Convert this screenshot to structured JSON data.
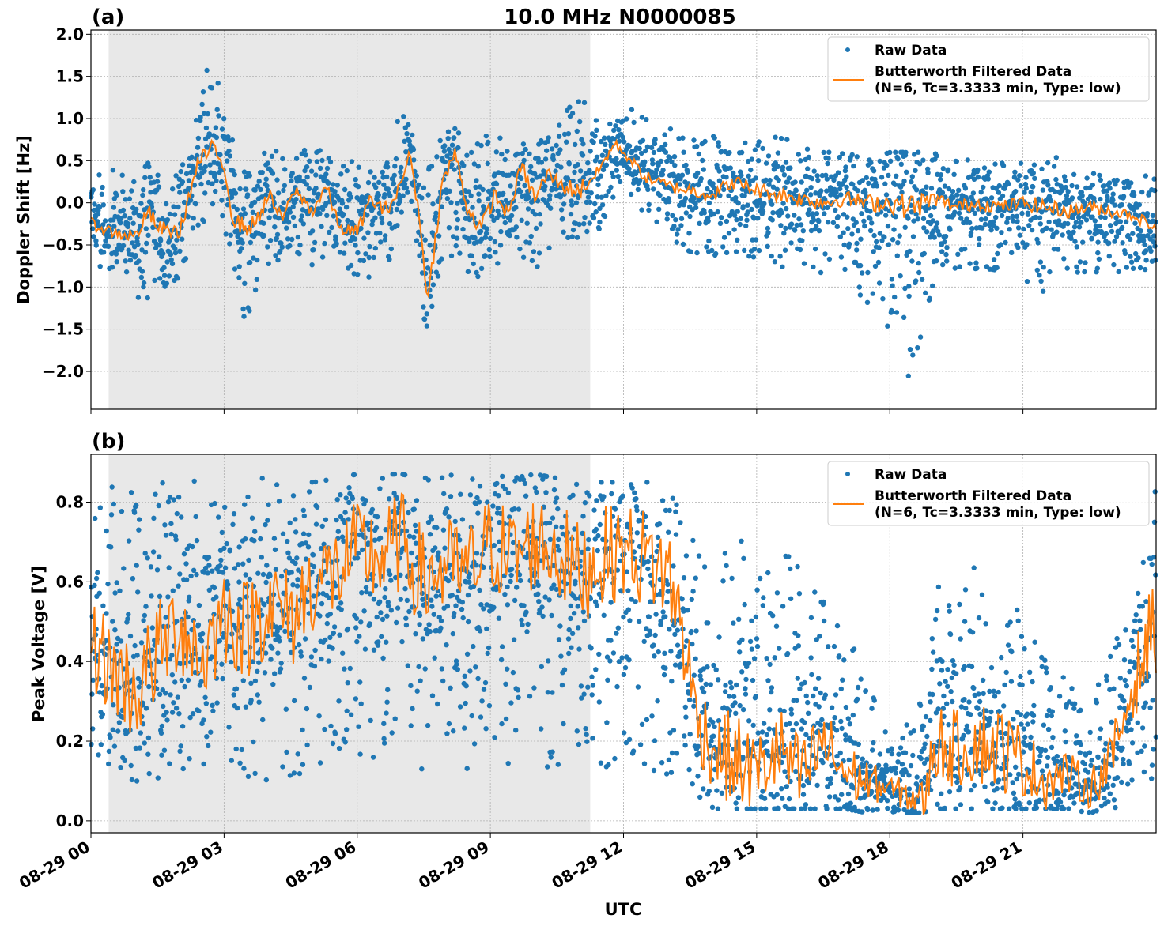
{
  "figure": {
    "title": "10.0 MHz N0000085",
    "xlabel": "UTC",
    "x_tick_labels": [
      "08-29 00",
      "08-29 03",
      "08-29 06",
      "08-29 09",
      "08-29 12",
      "08-29 15",
      "08-29 18",
      "08-29 21"
    ],
    "shaded_interval_utc": [
      "08-29 00:24",
      "08-29 11:15"
    ],
    "legend": {
      "raw": "Raw Data",
      "filtered_line1": "Butterworth Filtered Data",
      "filtered_line2": "(N=6, Tc=3.3333 min, Type: low)"
    },
    "colors": {
      "raw": "#1f77b4",
      "filtered": "#ff7f0e",
      "shade": "#e8e8e8",
      "grid": "#b0b0b0"
    }
  },
  "chart_data": [
    {
      "panel": "(a)",
      "type": "scatter",
      "ylabel": "Doppler Shift [Hz]",
      "xlim_hours": [
        0,
        24
      ],
      "ylim": [
        -2.45,
        2.05
      ],
      "y_ticks": [
        2.0,
        1.5,
        1.0,
        0.5,
        0.0,
        -0.5,
        -1.0,
        -1.5,
        -2.0
      ],
      "y_tick_labels": [
        "2.0",
        "1.5",
        "1.0",
        "0.5",
        "0.0",
        "−0.5",
        "−1.0",
        "−1.5",
        "−2.0"
      ],
      "legend_position": "upper right",
      "grid": true,
      "series": [
        {
          "name": "Butterworth Filtered Data",
          "x_hours": [
            0,
            0.5,
            1,
            1.3,
            1.5,
            2,
            2.4,
            2.7,
            3,
            3.2,
            3.5,
            3.7,
            4,
            4.3,
            4.6,
            5,
            5.3,
            5.6,
            6,
            6.3,
            6.6,
            6.9,
            7.2,
            7.4,
            7.6,
            7.9,
            8.2,
            8.5,
            8.8,
            9.1,
            9.4,
            9.7,
            10,
            10.3,
            10.6,
            11,
            11.4,
            11.8,
            12,
            12.5,
            13,
            13.5,
            14,
            14.5,
            15,
            15.5,
            16,
            16.5,
            17,
            17.5,
            18,
            18.5,
            19,
            19.5,
            20,
            20.5,
            21,
            21.5,
            22,
            22.5,
            23,
            23.5,
            24
          ],
          "y": [
            -0.25,
            -0.35,
            -0.4,
            -0.1,
            -0.3,
            -0.35,
            0.45,
            0.65,
            0.45,
            -0.2,
            -0.3,
            -0.25,
            0.1,
            -0.2,
            0.15,
            -0.1,
            0.2,
            -0.3,
            -0.35,
            0.05,
            -0.1,
            0.1,
            0.6,
            -0.2,
            -1.15,
            0.2,
            0.6,
            -0.1,
            -0.3,
            0.1,
            -0.15,
            0.45,
            0.05,
            0.35,
            0.2,
            0.15,
            0.35,
            0.7,
            0.6,
            0.3,
            0.2,
            0.15,
            0.1,
            0.25,
            0.15,
            0.1,
            0.05,
            0.0,
            0.05,
            0.0,
            0.0,
            -0.05,
            0.05,
            -0.05,
            0.0,
            -0.05,
            0.0,
            -0.05,
            -0.1,
            -0.05,
            -0.1,
            -0.15,
            -0.3
          ]
        },
        {
          "name": "Raw Data",
          "x_hours": [
            0,
            0.5,
            1,
            1.5,
            2,
            2.5,
            2.7,
            3,
            3.5,
            4,
            4.5,
            5,
            5.5,
            6,
            6.5,
            7,
            7.2,
            7.5,
            8,
            8.5,
            9,
            9.5,
            10,
            10.5,
            11,
            11.5,
            12,
            12.5,
            13,
            13.5,
            14,
            14.5,
            15,
            15.5,
            16,
            16.5,
            17,
            17.5,
            18,
            18.5,
            19,
            19.5,
            20,
            20.5,
            21,
            21.5,
            22,
            22.5,
            23,
            23.5,
            24
          ],
          "y_min": [
            -0.9,
            -0.8,
            -1.2,
            -1.1,
            -0.9,
            -0.3,
            0.0,
            -0.3,
            -1.5,
            -0.8,
            -0.6,
            -0.8,
            -0.7,
            -0.9,
            -0.9,
            -0.4,
            -0.1,
            -1.6,
            -0.6,
            -1.0,
            -0.8,
            -0.6,
            -0.8,
            -0.5,
            -0.5,
            -0.3,
            0.3,
            -0.3,
            -0.4,
            -0.6,
            -0.7,
            -0.6,
            -0.7,
            -0.8,
            -0.8,
            -0.9,
            -0.9,
            -1.2,
            -1.5,
            -2.2,
            -0.9,
            -0.8,
            -0.8,
            -0.8,
            -0.9,
            -1.1,
            -0.9,
            -0.8,
            -0.9,
            -0.8,
            -0.8
          ],
          "y_max": [
            0.3,
            0.4,
            0.3,
            0.6,
            0.4,
            1.4,
            1.8,
            1.2,
            0.4,
            0.7,
            0.5,
            0.7,
            0.5,
            0.5,
            0.6,
            1.1,
            1.0,
            0.3,
            1.0,
            0.7,
            0.9,
            0.6,
            0.8,
            0.9,
            1.6,
            0.8,
            1.2,
            1.0,
            0.9,
            0.8,
            0.8,
            0.8,
            0.8,
            0.8,
            0.7,
            0.6,
            0.6,
            0.5,
            0.6,
            0.6,
            0.6,
            0.5,
            0.6,
            0.5,
            0.5,
            0.6,
            0.5,
            0.5,
            0.4,
            0.4,
            0.3
          ]
        }
      ]
    },
    {
      "panel": "(b)",
      "type": "scatter",
      "ylabel": "Peak Voltage [V]",
      "xlim_hours": [
        0,
        24
      ],
      "ylim": [
        -0.03,
        0.92
      ],
      "y_ticks": [
        0.0,
        0.2,
        0.4,
        0.6,
        0.8
      ],
      "y_tick_labels": [
        "0.0",
        "0.2",
        "0.4",
        "0.6",
        "0.8"
      ],
      "legend_position": "upper right",
      "grid": true,
      "series": [
        {
          "name": "Butterworth Filtered Data",
          "x_hours": [
            0,
            0.5,
            1,
            1.5,
            2,
            2.5,
            3,
            3.5,
            4,
            4.5,
            5,
            5.5,
            6,
            6.5,
            7,
            7.5,
            8,
            8.5,
            9,
            9.5,
            10,
            10.5,
            11,
            11.5,
            12,
            12.5,
            13,
            13.3,
            13.6,
            14,
            14.5,
            15,
            15.5,
            16,
            16.5,
            17,
            17.5,
            18,
            18.5,
            18.8,
            19,
            19.5,
            20,
            20.5,
            21,
            21.5,
            22,
            22.5,
            23,
            23.5,
            24
          ],
          "y": [
            0.45,
            0.38,
            0.32,
            0.42,
            0.5,
            0.4,
            0.52,
            0.48,
            0.55,
            0.5,
            0.6,
            0.62,
            0.68,
            0.66,
            0.7,
            0.6,
            0.64,
            0.62,
            0.7,
            0.66,
            0.7,
            0.68,
            0.62,
            0.66,
            0.68,
            0.66,
            0.62,
            0.5,
            0.28,
            0.18,
            0.15,
            0.12,
            0.18,
            0.1,
            0.2,
            0.12,
            0.1,
            0.08,
            0.06,
            0.05,
            0.2,
            0.18,
            0.2,
            0.18,
            0.15,
            0.1,
            0.12,
            0.08,
            0.15,
            0.35,
            0.5
          ]
        },
        {
          "name": "Raw Data",
          "x_hours": [
            0,
            0.5,
            1,
            1.5,
            2,
            2.5,
            3,
            3.5,
            4,
            4.5,
            5,
            5.5,
            6,
            6.5,
            7,
            7.5,
            8,
            8.5,
            9,
            9.5,
            10,
            10.5,
            11,
            11.5,
            12,
            12.5,
            13,
            13.3,
            13.6,
            14,
            14.5,
            15,
            15.5,
            16,
            16.5,
            17,
            17.5,
            18,
            18.5,
            18.8,
            19,
            19.5,
            20,
            20.5,
            21,
            21.5,
            22,
            22.5,
            23,
            23.5,
            24
          ],
          "y_min": [
            0.15,
            0.12,
            0.1,
            0.1,
            0.12,
            0.1,
            0.12,
            0.1,
            0.1,
            0.1,
            0.12,
            0.15,
            0.15,
            0.12,
            0.12,
            0.1,
            0.15,
            0.12,
            0.15,
            0.12,
            0.15,
            0.12,
            0.1,
            0.12,
            0.15,
            0.12,
            0.1,
            0.1,
            0.05,
            0.03,
            0.03,
            0.03,
            0.03,
            0.03,
            0.03,
            0.03,
            0.02,
            0.02,
            0.02,
            0.02,
            0.03,
            0.03,
            0.03,
            0.03,
            0.03,
            0.03,
            0.03,
            0.02,
            0.03,
            0.05,
            0.1
          ],
          "y_max": [
            0.85,
            0.84,
            0.84,
            0.86,
            0.86,
            0.86,
            0.85,
            0.86,
            0.86,
            0.86,
            0.86,
            0.86,
            0.87,
            0.87,
            0.87,
            0.86,
            0.87,
            0.86,
            0.87,
            0.86,
            0.87,
            0.86,
            0.86,
            0.85,
            0.85,
            0.85,
            0.85,
            0.82,
            0.7,
            0.6,
            0.75,
            0.6,
            0.7,
            0.65,
            0.55,
            0.5,
            0.35,
            0.2,
            0.3,
            0.3,
            0.6,
            0.6,
            0.65,
            0.68,
            0.55,
            0.45,
            0.35,
            0.3,
            0.45,
            0.6,
            0.84
          ]
        }
      ]
    }
  ]
}
